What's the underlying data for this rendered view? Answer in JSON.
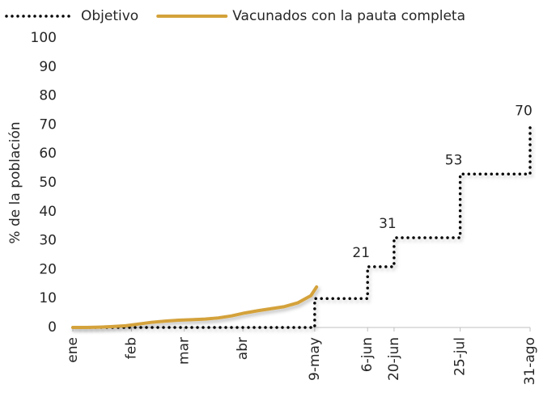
{
  "chart_data": {
    "type": "line",
    "y_label": "% de la población",
    "xlim": [
      1,
      243
    ],
    "xticks": [
      {
        "value": 1,
        "label": "ene"
      },
      {
        "value": 32,
        "label": "feb"
      },
      {
        "value": 60,
        "label": "mar"
      },
      {
        "value": 91,
        "label": "abr"
      },
      {
        "value": 129,
        "label": "9-may"
      },
      {
        "value": 157,
        "label": "6-jun"
      },
      {
        "value": 171,
        "label": "20-jun"
      },
      {
        "value": 206,
        "label": "25-jul"
      },
      {
        "value": 243,
        "label": "31-ago"
      }
    ],
    "ylim": [
      0,
      100
    ],
    "yticks": [
      0,
      10,
      20,
      30,
      40,
      50,
      60,
      70,
      80,
      90,
      100
    ],
    "series": [
      {
        "name": "Objetivo",
        "color": "#000000",
        "style": "dotted",
        "x": [
          1,
          129,
          129,
          157,
          157,
          171,
          171,
          206,
          206,
          243,
          243
        ],
        "values": [
          0,
          0,
          10,
          10,
          21,
          21,
          31,
          31,
          53,
          53,
          70
        ]
      },
      {
        "name": "Vacunados con la pauta completa",
        "color": "#d4a23a",
        "style": "solid",
        "x": [
          1,
          8,
          15,
          22,
          29,
          36,
          43,
          50,
          57,
          64,
          71,
          78,
          85,
          92,
          99,
          106,
          113,
          120,
          127,
          130
        ],
        "values": [
          0,
          0,
          0.1,
          0.3,
          0.6,
          1.2,
          1.8,
          2.2,
          2.5,
          2.7,
          2.9,
          3.3,
          4.0,
          5.0,
          5.8,
          6.5,
          7.2,
          8.5,
          11,
          14
        ]
      }
    ],
    "annotations": [
      {
        "x": 157,
        "value": 21
      },
      {
        "x": 171,
        "value": 31
      },
      {
        "x": 206,
        "value": 53
      },
      {
        "x": 243,
        "value": 70
      }
    ]
  }
}
